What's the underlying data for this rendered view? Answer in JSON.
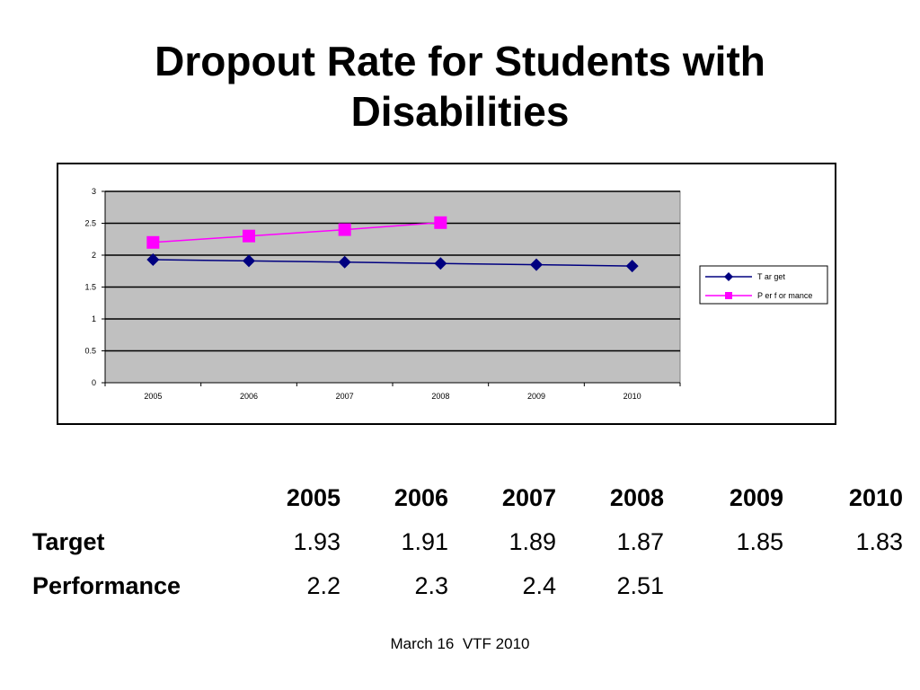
{
  "slide": {
    "title_line1": "Dropout Rate for Students with",
    "title_line2": "Disabilities",
    "footer": "March 16  VTF 2010"
  },
  "chart_data": {
    "type": "line",
    "title": "",
    "xlabel": "",
    "ylabel": "",
    "categories": [
      "2005",
      "2006",
      "2007",
      "2008",
      "2009",
      "2010"
    ],
    "ylim": [
      0,
      3
    ],
    "yticks": [
      "0",
      "0.5",
      "1",
      "1.5",
      "2",
      "2.5",
      "3"
    ],
    "grid": true,
    "plot_background": "#c0c0c0",
    "legend_position": "right",
    "series": [
      {
        "name": "T ar get",
        "values": [
          1.93,
          1.91,
          1.89,
          1.87,
          1.85,
          1.83
        ],
        "color": "#000080",
        "marker": "diamond"
      },
      {
        "name": "P er f or mance",
        "values": [
          2.2,
          2.3,
          2.4,
          2.51,
          null,
          null
        ],
        "color": "#ff00ff",
        "marker": "square"
      }
    ]
  },
  "table": {
    "headers": [
      "2005",
      "2006",
      "2007",
      "2008",
      "2009",
      "2010"
    ],
    "rows": [
      {
        "label": "Target",
        "values": [
          "1.93",
          "1.91",
          "1.89",
          "1.87",
          "1.85",
          "1.83"
        ]
      },
      {
        "label": "Performance",
        "values": [
          "2.2",
          "2.3",
          "2.4",
          "2.51",
          "",
          ""
        ]
      }
    ]
  }
}
